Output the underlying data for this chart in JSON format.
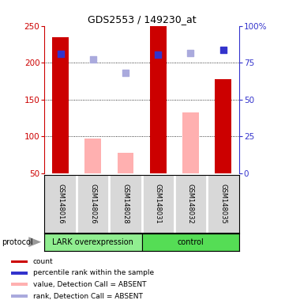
{
  "title": "GDS2553 / 149230_at",
  "samples": [
    "GSM148016",
    "GSM148026",
    "GSM148028",
    "GSM148031",
    "GSM148032",
    "GSM148035"
  ],
  "red_bars": [
    235,
    null,
    null,
    250,
    null,
    178
  ],
  "pink_bars": [
    null,
    97,
    78,
    null,
    133,
    null
  ],
  "blue_squares": [
    212,
    null,
    null,
    211,
    null,
    217
  ],
  "lavender_squares": [
    null,
    205,
    186,
    null,
    213,
    null
  ],
  "ylim_left": [
    50,
    250
  ],
  "ylim_right": [
    0,
    100
  ],
  "left_ticks": [
    50,
    100,
    150,
    200,
    250
  ],
  "right_ticks": [
    0,
    25,
    50,
    75,
    100
  ],
  "right_tick_labels": [
    "0",
    "25",
    "50",
    "75",
    "100%"
  ],
  "red_color": "#cc0000",
  "pink_color": "#ffb0b0",
  "blue_color": "#3333cc",
  "lavender_color": "#aaaadd",
  "lark_color": "#90EE90",
  "control_color": "#55dd55",
  "bar_width": 0.5,
  "lark_label": "LARK overexpression",
  "control_label": "control",
  "protocol_label": "protocol",
  "legend_items": [
    {
      "color": "#cc0000",
      "label": "count"
    },
    {
      "color": "#3333cc",
      "label": "percentile rank within the sample"
    },
    {
      "color": "#ffb0b0",
      "label": "value, Detection Call = ABSENT"
    },
    {
      "color": "#aaaadd",
      "label": "rank, Detection Call = ABSENT"
    }
  ]
}
